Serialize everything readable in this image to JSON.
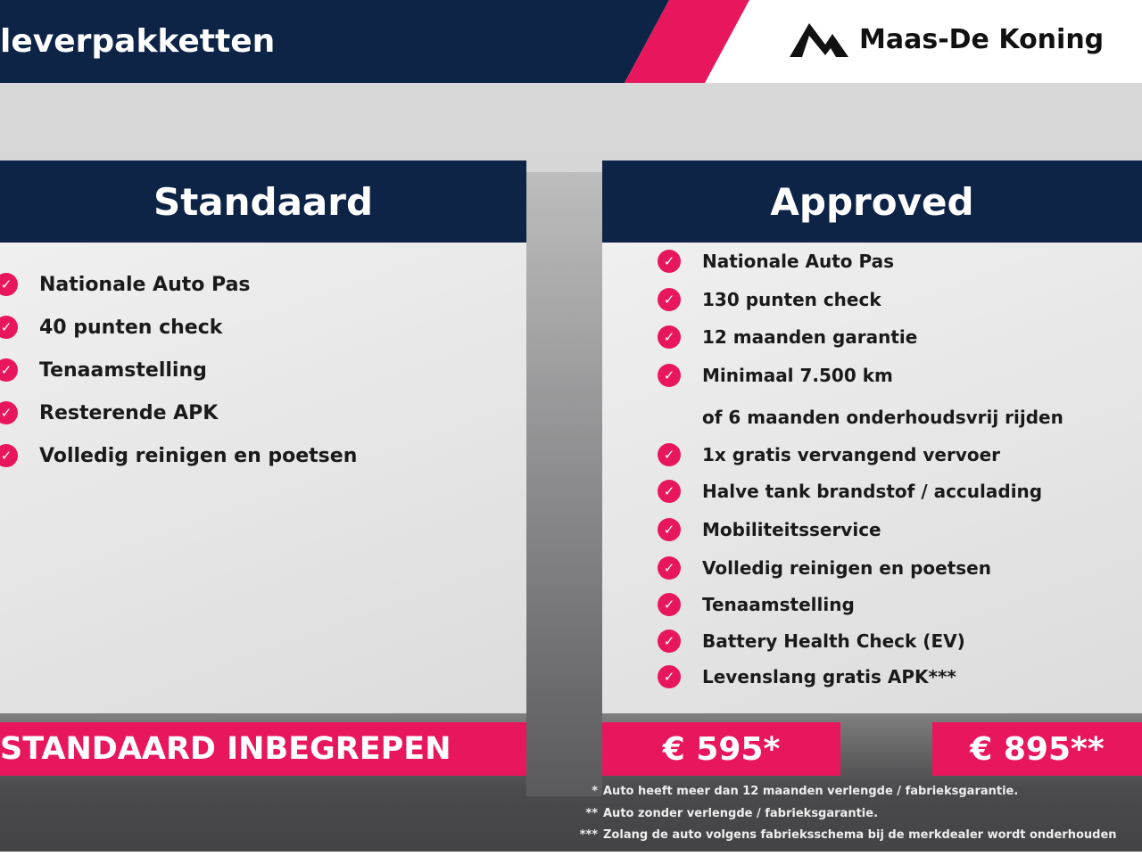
{
  "header": {
    "title": "leverpakketten",
    "brand": "Maas-De Koning",
    "colors": {
      "navy": "#0d2447",
      "pink": "#e8175d"
    }
  },
  "standard": {
    "title": "Standaard",
    "items": [
      "Nationale Auto Pas",
      "40 punten check",
      "Tenaamstelling",
      "Resterende APK",
      "Volledig reinigen en poetsen"
    ],
    "price_label": "STANDAARD INBEGREPEN"
  },
  "approved": {
    "title": "Approved",
    "items": [
      {
        "text": "Nationale Auto Pas",
        "check": true
      },
      {
        "text": "130 punten check",
        "check": true
      },
      {
        "text": "12 maanden garantie",
        "check": true
      },
      {
        "text": "Minimaal 7.500 km",
        "check": true
      },
      {
        "text": "of 6 maanden onderhoudsvrij rijden",
        "check": false
      },
      {
        "text": "1x gratis vervangend vervoer",
        "check": true
      },
      {
        "text": "Halve tank brandstof / acculading",
        "check": true
      },
      {
        "text": "Mobiliteitsservice",
        "check": true
      },
      {
        "text": "Volledig reinigen en poetsen",
        "check": true
      },
      {
        "text": "Tenaamstelling",
        "check": true
      },
      {
        "text": "Battery Health Check (EV)",
        "check": true
      },
      {
        "text": "Levenslang gratis APK***",
        "check": true
      }
    ],
    "price1": "€ 595*",
    "price2": "€ 895**"
  },
  "footnotes": [
    {
      "mark": "*",
      "text": "Auto heeft meer dan 12 maanden verlengde / fabrieksgarantie."
    },
    {
      "mark": "**",
      "text": "Auto zonder verlengde / fabrieksgarantie."
    },
    {
      "mark": "***",
      "text": "Zolang de auto volgens fabrieksschema bij de merkdealer wordt onderhouden"
    }
  ]
}
